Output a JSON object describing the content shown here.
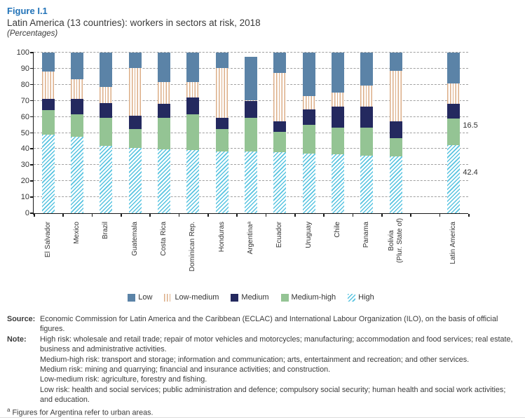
{
  "figure": {
    "label": "Figure I.1",
    "title": "Latin America (13 countries): workers in sectors at risk, 2018",
    "unit_note": "(Percentages)"
  },
  "chart_data": {
    "type": "bar",
    "stacked": true,
    "title": "Latin America (13 countries): workers in sectors at risk, 2018",
    "ylabel": "",
    "ylim": [
      0,
      100
    ],
    "ytick_step": 10,
    "grid": "horizontal-dashed",
    "legend_position": "bottom",
    "categories": [
      "El Salvador",
      "Mexico",
      "Brazil",
      "Guatemala",
      "Costa Rica",
      "Dominican Rep.",
      "Honduras",
      "Argentinaᵃ",
      "Ecuador",
      "Uruguay",
      "Chile",
      "Panama",
      "Bolivia\n(Plur. State of)",
      "Latin America"
    ],
    "gap_before_category": "Latin America",
    "series": [
      {
        "name": "High",
        "pattern": "diagonal-hatch",
        "color": "#57c3e0",
        "values": [
          48.9,
          47.6,
          41.8,
          40.8,
          39.7,
          39.2,
          38.6,
          38.6,
          38.1,
          36.9,
          36.7,
          36.0,
          35.2,
          42.4
        ]
      },
      {
        "name": "Medium-high",
        "pattern": "solid",
        "color": "#94c494",
        "values": [
          15.1,
          13.8,
          17.7,
          11.6,
          19.5,
          22.2,
          13.7,
          20.9,
          12.4,
          18.0,
          16.7,
          17.1,
          11.7,
          16.5
        ]
      },
      {
        "name": "Medium",
        "pattern": "solid",
        "color": "#24295f",
        "values": [
          7.1,
          9.8,
          9.2,
          8.3,
          8.8,
          10.6,
          6.9,
          10.4,
          6.9,
          9.9,
          12.8,
          13.1,
          10.2,
          9.1
        ]
      },
      {
        "name": "Low-medium",
        "pattern": "vertical-hatch",
        "color": "#dcae87",
        "values": [
          16.9,
          12.4,
          9.8,
          29.5,
          13.8,
          9.8,
          31.3,
          0.4,
          29.8,
          8.3,
          9.1,
          13.4,
          31.5,
          12.8
        ]
      },
      {
        "name": "Low",
        "pattern": "solid",
        "color": "#5b83a7",
        "values": [
          12.0,
          16.4,
          21.5,
          9.8,
          18.2,
          18.2,
          9.5,
          27.2,
          12.8,
          26.9,
          24.7,
          20.4,
          11.4,
          19.2
        ]
      }
    ],
    "annotations": [
      {
        "text": "16.5",
        "category": "Latin America",
        "series": "Medium-high"
      },
      {
        "text": "42.4",
        "category": "Latin America",
        "series": "High"
      }
    ]
  },
  "legend": {
    "items": [
      {
        "label": "Low",
        "pattern": "solid",
        "color": "#5b83a7"
      },
      {
        "label": "Low-medium",
        "pattern": "vertical-hatch",
        "color": "#dcae87"
      },
      {
        "label": "Medium",
        "pattern": "solid",
        "color": "#24295f"
      },
      {
        "label": "Medium-high",
        "pattern": "solid",
        "color": "#94c494"
      },
      {
        "label": "High",
        "pattern": "diagonal-hatch",
        "color": "#57c3e0"
      }
    ]
  },
  "footer": {
    "source_label": "Source:",
    "source_text": "Economic Commission for Latin America and the Caribbean (ECLAC) and International Labour Organization (ILO), on the basis of official figures.",
    "note_label": "Note:",
    "note_lines": [
      "High risk: wholesale and retail trade; repair of motor vehicles and motorcycles; manufacturing; accommodation and food services; real estate, business and administrative activities.",
      "Medium-high risk: transport and storage; information and communication; arts, entertainment and recreation; and other services.",
      "Medium risk: mining and quarrying; financial and insurance activities; and construction.",
      "Low-medium risk: agriculture, forestry and fishing.",
      "Low risk: health and social services; public administration and defence; compulsory social security; human health and social work activities; and education."
    ],
    "footnote_marker": "a",
    "footnote_text": "Figures for Argentina refer to urban areas."
  },
  "colors": {
    "figure_label": "#2273b8",
    "axis": "#1a1a1a",
    "gridline": "#a0a0a0",
    "text": "#3b3b3b"
  }
}
